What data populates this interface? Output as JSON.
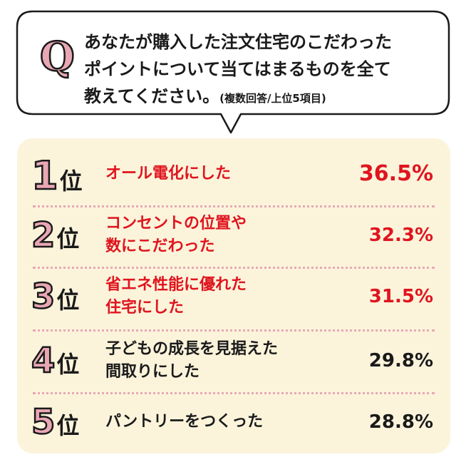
{
  "colors": {
    "accent_red": "#e0141e",
    "text_dark": "#1a1a1a",
    "rank_pink": "#e9a7b3",
    "panel_bg": "#fbf4db",
    "dotted_line": "#e7a9b4"
  },
  "question": {
    "letter": "Q",
    "line1": "あなたが購入した注文住宅のこだわった",
    "line2": "ポイントについて当てはまるものを全て",
    "line3": "教えてください。",
    "note": "(複数回答/上位5項目)"
  },
  "chart_data": {
    "type": "table",
    "title": "",
    "rank_suffix": "位",
    "items": [
      {
        "rank": "1",
        "label_lines": [
          "オール電化にした"
        ],
        "value": 36.5,
        "value_text": "36.5%",
        "highlight": true
      },
      {
        "rank": "2",
        "label_lines": [
          "コンセントの位置や",
          "数にこだわった"
        ],
        "value": 32.3,
        "value_text": "32.3%",
        "highlight": true
      },
      {
        "rank": "3",
        "label_lines": [
          "省エネ性能に優れた",
          "住宅にした"
        ],
        "value": 31.5,
        "value_text": "31.5%",
        "highlight": true
      },
      {
        "rank": "4",
        "label_lines": [
          "子どもの成長を見据えた",
          "間取りにした"
        ],
        "value": 29.8,
        "value_text": "29.8%",
        "highlight": false
      },
      {
        "rank": "5",
        "label_lines": [
          "パントリーをつくった"
        ],
        "value": 28.8,
        "value_text": "28.8%",
        "highlight": false
      }
    ]
  }
}
